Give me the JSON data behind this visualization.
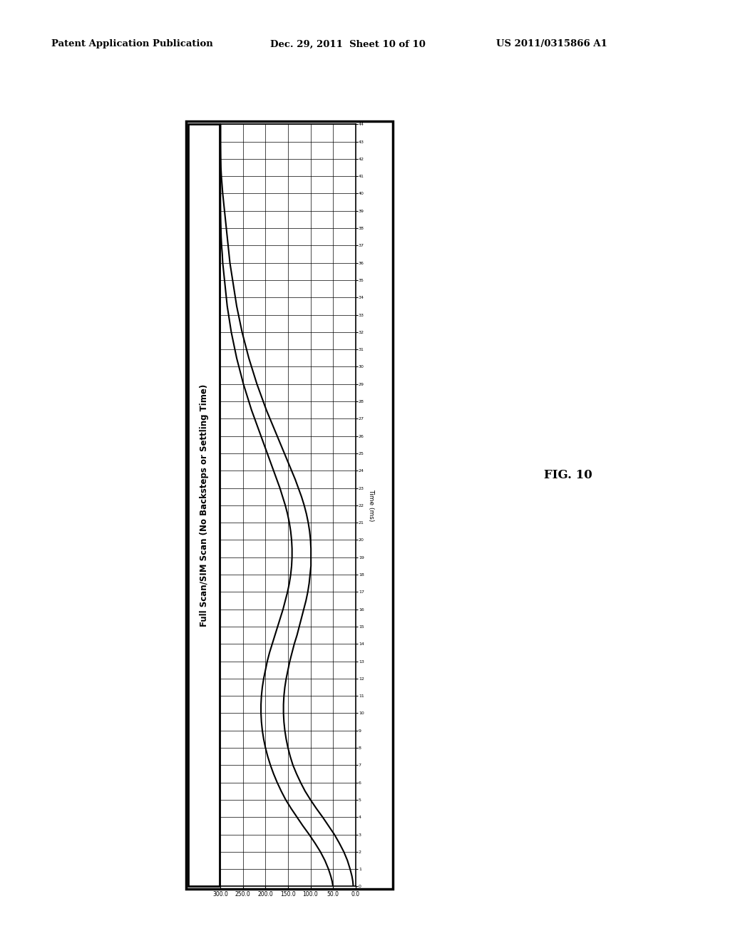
{
  "header_left": "Patent Application Publication",
  "header_mid": "Dec. 29, 2011  Sheet 10 of 10",
  "header_right": "US 2011/0315866 A1",
  "fig_label": "FIG. 10",
  "chart_title": "Full Scan/SIM Scan (No Backsteps or Settling Time)",
  "time_label": "Time (ms)",
  "x_ticks_time": [
    0,
    1,
    2,
    3,
    4,
    5,
    6,
    7,
    8,
    9,
    10,
    11,
    12,
    13,
    14,
    15,
    16,
    17,
    18,
    19,
    20,
    21,
    22,
    23,
    24,
    25,
    26,
    27,
    28,
    29,
    30,
    31,
    32,
    33,
    34,
    35,
    36,
    37,
    38,
    39,
    40,
    41,
    42,
    43,
    44
  ],
  "y_ticks_val": [
    0.0,
    50.0,
    100.0,
    150.0,
    200.0,
    250.0,
    300.0
  ],
  "curve1_time": [
    0.0,
    0.3,
    0.6,
    1.0,
    1.5,
    2.0,
    2.5,
    3.0,
    3.5,
    4.0,
    4.5,
    5.0,
    5.5,
    6.0,
    6.5,
    7.0,
    7.5,
    8.0,
    8.5,
    9.0,
    9.5,
    10.0,
    10.5,
    11.0,
    11.5,
    12.0,
    12.5,
    13.0,
    13.5,
    14.0,
    14.5,
    15.0,
    15.5,
    16.0,
    16.5,
    17.0,
    17.5,
    18.0,
    18.5,
    19.0,
    19.5,
    20.0,
    20.5,
    21.0,
    21.5,
    22.0,
    22.5,
    23.0,
    23.5,
    24.0,
    24.5,
    25.0,
    25.5,
    26.0,
    26.5,
    27.0,
    27.5,
    28.0,
    28.5,
    29.0,
    29.5,
    30.0,
    30.5,
    31.0,
    31.5,
    32.0,
    32.5,
    33.0,
    33.5,
    34.0,
    34.5,
    35.0,
    35.5,
    36.0,
    36.5,
    37.0,
    37.5,
    38.0,
    38.5,
    39.0,
    39.5,
    40.0,
    40.5,
    41.0,
    41.5,
    42.0,
    42.5,
    43.0,
    43.5,
    44.0
  ],
  "curve1_val": [
    50.0,
    52.0,
    55.0,
    60.0,
    68.0,
    78.0,
    90.0,
    103.0,
    117.0,
    130.0,
    143.0,
    155.0,
    165.0,
    174.0,
    182.0,
    189.0,
    195.0,
    200.0,
    204.0,
    207.0,
    209.0,
    210.0,
    210.0,
    209.0,
    207.0,
    204.0,
    200.0,
    196.0,
    191.0,
    185.0,
    179.0,
    173.0,
    167.0,
    161.0,
    156.0,
    151.0,
    147.0,
    144.0,
    142.0,
    141.0,
    141.0,
    142.0,
    144.0,
    147.0,
    151.0,
    156.0,
    162.0,
    168.0,
    175.0,
    182.0,
    189.0,
    196.0,
    203.0,
    210.0,
    217.0,
    224.0,
    231.0,
    237.0,
    243.0,
    249.0,
    254.0,
    259.0,
    264.0,
    268.0,
    272.0,
    276.0,
    279.0,
    282.0,
    285.0,
    287.0,
    289.0,
    291.0,
    293.0,
    295.0,
    296.0,
    297.5,
    298.5,
    299.0,
    299.5,
    299.8,
    300.0,
    300.0,
    300.0,
    300.0,
    300.0,
    300.0,
    300.0,
    300.0,
    300.0,
    300.0
  ],
  "curve2_time": [
    0.0,
    0.3,
    0.6,
    1.0,
    1.5,
    2.0,
    2.5,
    3.0,
    3.5,
    4.0,
    4.5,
    5.0,
    5.5,
    6.0,
    6.5,
    7.0,
    7.5,
    8.0,
    8.5,
    9.0,
    9.5,
    10.0,
    10.5,
    11.0,
    11.5,
    12.0,
    12.5,
    13.0,
    13.5,
    14.0,
    14.5,
    15.0,
    15.5,
    16.0,
    16.5,
    17.0,
    17.5,
    18.0,
    18.5,
    19.0,
    19.5,
    20.0,
    20.5,
    21.0,
    21.5,
    22.0,
    22.5,
    23.0,
    23.5,
    24.0,
    24.5,
    25.0,
    25.5,
    26.0,
    26.5,
    27.0,
    27.5,
    28.0,
    28.5,
    29.0,
    29.5,
    30.0,
    30.5,
    31.0,
    31.5,
    32.0,
    32.5,
    33.0,
    33.5,
    34.0,
    34.5,
    35.0,
    35.5,
    36.0,
    36.5,
    37.0,
    37.5,
    38.0,
    38.5,
    39.0,
    39.5,
    40.0,
    40.5,
    41.0,
    41.5,
    42.0,
    42.5,
    43.0,
    43.5,
    44.0
  ],
  "curve2_val": [
    5.0,
    6.0,
    8.0,
    12.0,
    18.0,
    26.0,
    36.0,
    47.0,
    60.0,
    73.0,
    87.0,
    100.0,
    112.0,
    122.0,
    131.0,
    139.0,
    145.0,
    150.0,
    154.0,
    157.0,
    159.0,
    160.0,
    160.0,
    159.0,
    157.0,
    154.0,
    150.0,
    146.0,
    141.0,
    136.0,
    130.0,
    125.0,
    120.0,
    115.0,
    110.0,
    106.0,
    103.0,
    101.0,
    99.0,
    99.0,
    99.0,
    100.0,
    102.0,
    105.0,
    109.0,
    114.0,
    120.0,
    127.0,
    134.0,
    142.0,
    150.0,
    158.0,
    166.0,
    174.0,
    182.0,
    190.0,
    198.0,
    205.0,
    212.0,
    219.0,
    225.0,
    231.0,
    237.0,
    242.0,
    247.0,
    252.0,
    256.0,
    260.0,
    264.0,
    267.0,
    270.0,
    273.0,
    276.0,
    279.0,
    281.0,
    283.0,
    285.0,
    287.0,
    289.0,
    291.0,
    293.0,
    295.0,
    296.5,
    298.0,
    299.0,
    299.5,
    299.8,
    300.0,
    300.0,
    300.0
  ],
  "bg_color": "#ffffff",
  "line_color": "#000000"
}
